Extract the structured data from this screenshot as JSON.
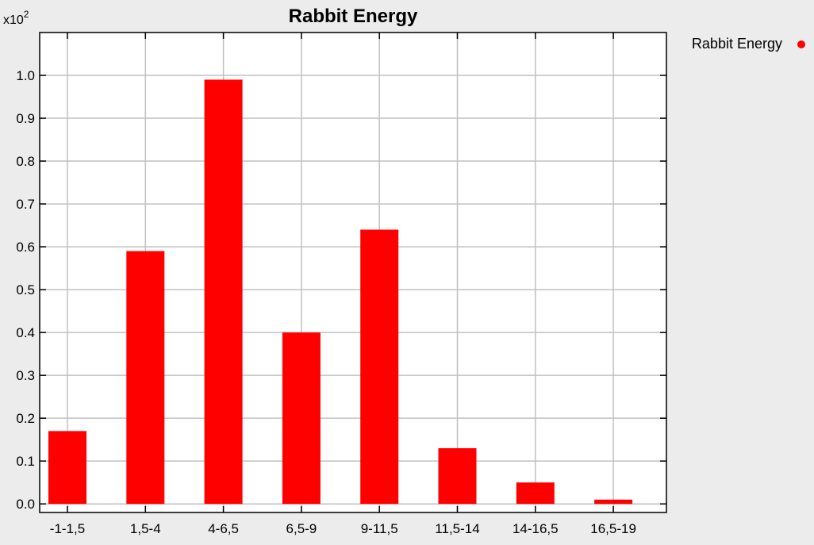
{
  "chart_data": {
    "type": "bar",
    "title": "Rabbit Energy",
    "multiplier_base": "x10",
    "multiplier_exp": "2",
    "categories": [
      "-1-1,5",
      "1,5-4",
      "4-6,5",
      "6,5-9",
      "9-11,5",
      "11,5-14",
      "14-16,5",
      "16,5-19"
    ],
    "series": [
      {
        "name": "Rabbit Energy",
        "values": [
          0.17,
          0.59,
          0.99,
          0.4,
          0.64,
          0.13,
          0.05,
          0.01
        ]
      }
    ],
    "ylim": [
      -0.02,
      1.1
    ],
    "yticks": [
      0.0,
      0.1,
      0.2,
      0.3,
      0.4,
      0.5,
      0.6,
      0.7,
      0.8,
      0.9,
      1.0
    ],
    "ytick_labels": [
      "0.0",
      "0.1",
      "0.2",
      "0.3",
      "0.4",
      "0.5",
      "0.6",
      "0.7",
      "0.8",
      "0.9",
      "1.0"
    ],
    "grid": true,
    "legend": "top-right",
    "colors": {
      "bar": "#ff0000",
      "background": "#ececec",
      "plot_background": "#ffffff",
      "grid": "#c0c0c0",
      "text": "#000000"
    }
  }
}
